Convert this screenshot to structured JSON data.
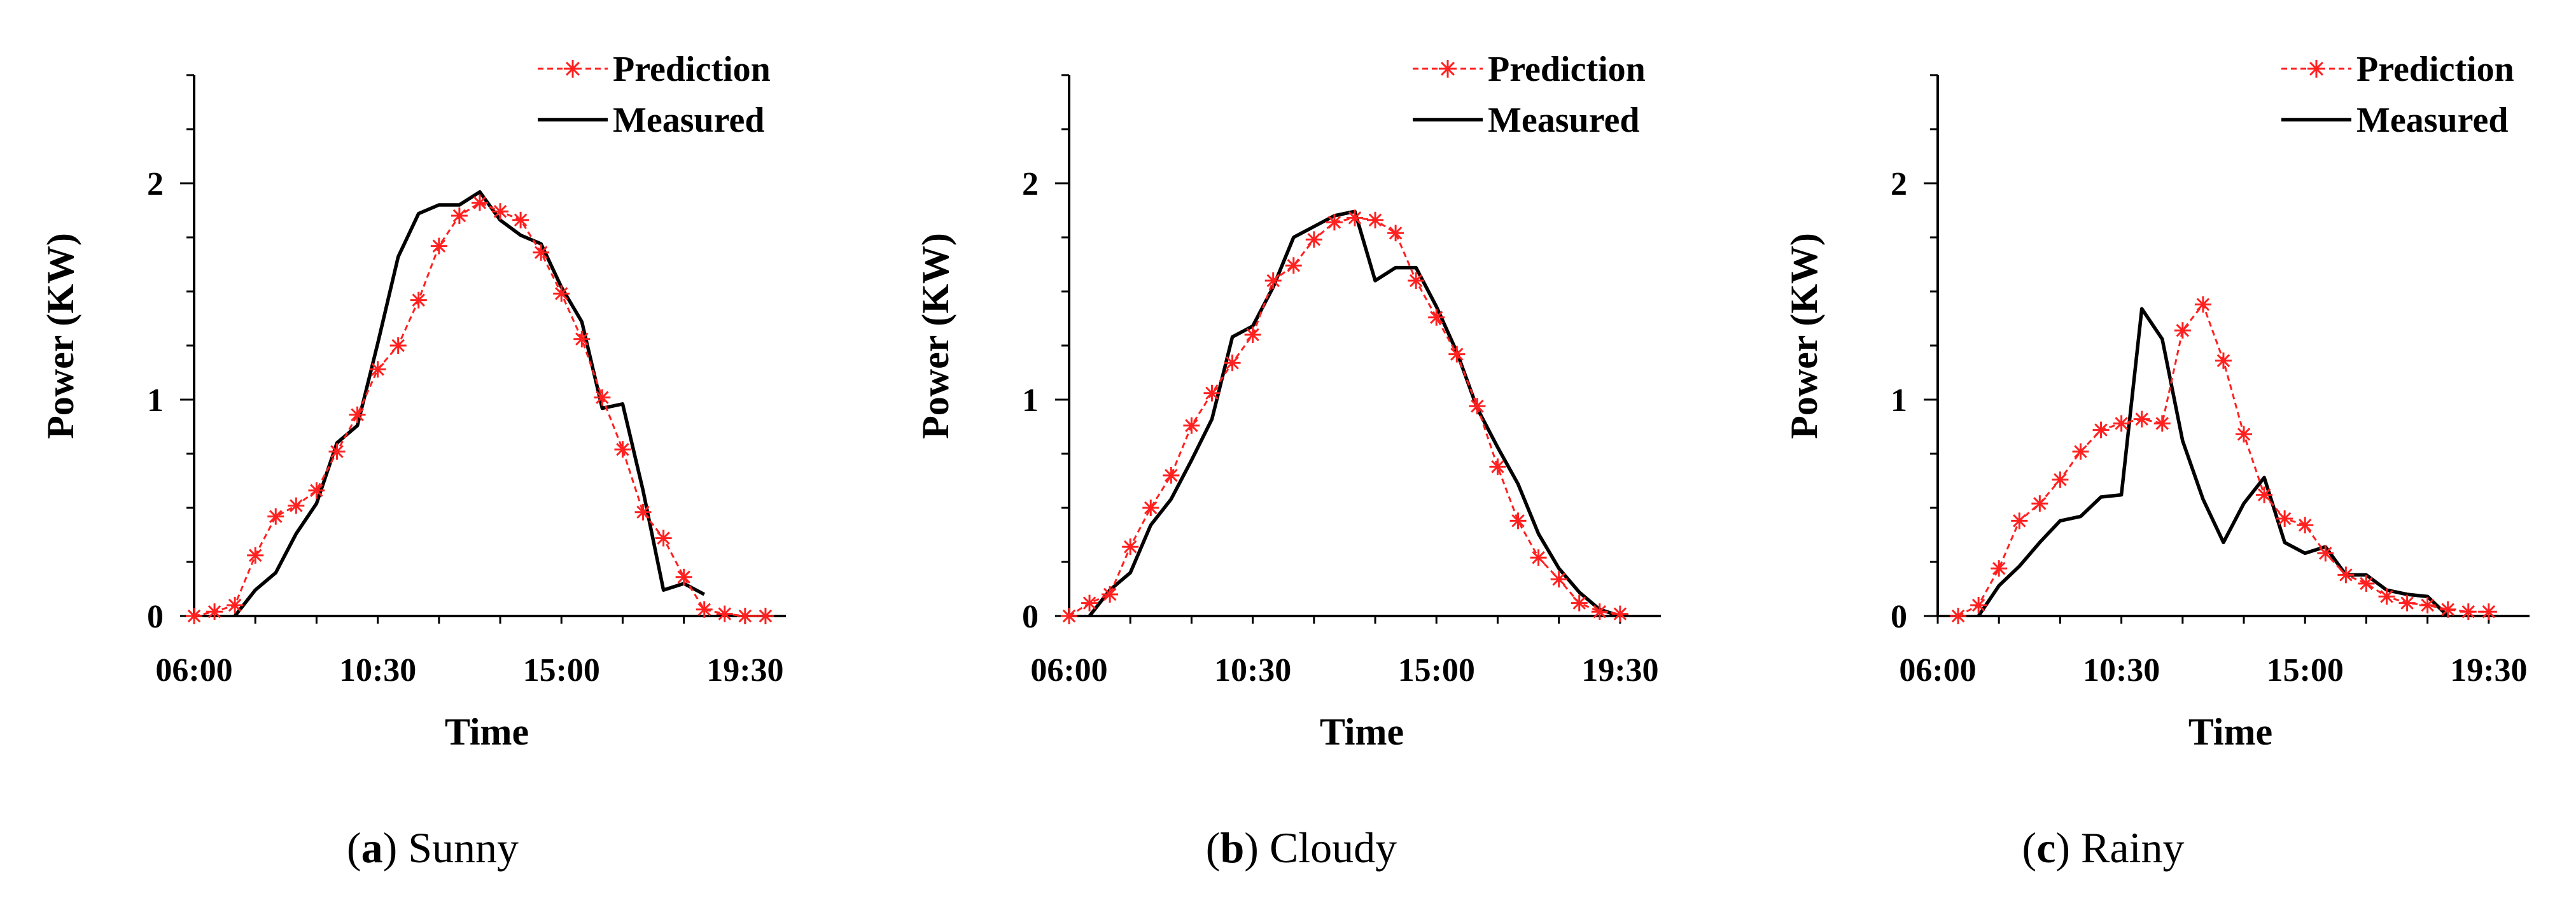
{
  "chart_data": [
    {
      "type": "line",
      "caption_letter": "a",
      "caption_text": "Sunny",
      "xlabel": "Time",
      "ylabel": "Power (KW)",
      "xlim": [
        6,
        20.5
      ],
      "ylim": [
        0,
        2.5
      ],
      "x_ticks": [
        6,
        10.5,
        15,
        19.5
      ],
      "x_tick_labels": [
        "06:00",
        "10:30",
        "15:00",
        "19:30"
      ],
      "y_ticks": [
        0,
        1,
        2
      ],
      "y_tick_labels": [
        "0",
        "1",
        "2"
      ],
      "legend": [
        "Prediction",
        "Measured"
      ],
      "series": [
        {
          "name": "Prediction",
          "x": [
            6,
            6.5,
            7,
            7.5,
            8,
            8.5,
            9,
            9.5,
            10,
            10.5,
            11,
            11.5,
            12,
            12.5,
            13,
            13.5,
            14,
            14.5,
            15,
            15.5,
            16,
            16.5,
            17,
            17.5,
            18,
            18.5,
            19,
            19.5,
            20
          ],
          "values": [
            0.0,
            0.02,
            0.05,
            0.28,
            0.46,
            0.51,
            0.58,
            0.76,
            0.93,
            1.14,
            1.25,
            1.46,
            1.71,
            1.85,
            1.91,
            1.87,
            1.83,
            1.68,
            1.49,
            1.28,
            1.01,
            0.77,
            0.48,
            0.36,
            0.18,
            0.03,
            0.01,
            0.0,
            0.0
          ]
        },
        {
          "name": "Measured",
          "x": [
            7,
            7.5,
            8,
            8.5,
            9,
            9.5,
            10,
            10.5,
            11,
            11.5,
            12,
            12.5,
            13,
            13.5,
            14,
            14.5,
            15,
            15.5,
            16,
            16.5,
            17,
            17.5,
            18,
            18.5
          ],
          "values": [
            0.0,
            0.12,
            0.2,
            0.38,
            0.52,
            0.8,
            0.88,
            1.26,
            1.66,
            1.86,
            1.9,
            1.9,
            1.96,
            1.83,
            1.76,
            1.72,
            1.52,
            1.36,
            0.96,
            0.98,
            0.58,
            0.12,
            0.15,
            0.1
          ]
        }
      ]
    },
    {
      "type": "line",
      "caption_letter": "b",
      "caption_text": "Cloudy",
      "xlabel": "Time",
      "ylabel": "Power (KW)",
      "xlim": [
        6,
        20.5
      ],
      "ylim": [
        0,
        2.5
      ],
      "x_ticks": [
        6,
        10.5,
        15,
        19.5
      ],
      "x_tick_labels": [
        "06:00",
        "10:30",
        "15:00",
        "19:30"
      ],
      "y_ticks": [
        0,
        1,
        2
      ],
      "y_tick_labels": [
        "0",
        "1",
        "2"
      ],
      "legend": [
        "Prediction",
        "Measured"
      ],
      "series": [
        {
          "name": "Prediction",
          "x": [
            6,
            6.5,
            7,
            7.5,
            8,
            8.5,
            9,
            9.5,
            10,
            10.5,
            11,
            11.5,
            12,
            12.5,
            13,
            13.5,
            14,
            14.5,
            15,
            15.5,
            16,
            16.5,
            17,
            17.5,
            18,
            18.5,
            19,
            19.5
          ],
          "values": [
            0.0,
            0.06,
            0.1,
            0.32,
            0.5,
            0.65,
            0.88,
            1.03,
            1.17,
            1.3,
            1.55,
            1.62,
            1.74,
            1.82,
            1.84,
            1.83,
            1.77,
            1.55,
            1.38,
            1.21,
            0.97,
            0.69,
            0.44,
            0.27,
            0.17,
            0.06,
            0.02,
            0.01
          ]
        },
        {
          "name": "Measured",
          "x": [
            6.5,
            7,
            7.5,
            8,
            8.5,
            9,
            9.5,
            10,
            10.5,
            11,
            11.5,
            12,
            12.5,
            13,
            13.5,
            14,
            14.5,
            15,
            15.5,
            16,
            16.5,
            17,
            17.5,
            18,
            18.5,
            19,
            19.5
          ],
          "values": [
            0.0,
            0.12,
            0.2,
            0.42,
            0.54,
            0.72,
            0.91,
            1.29,
            1.34,
            1.52,
            1.75,
            1.8,
            1.85,
            1.87,
            1.55,
            1.61,
            1.61,
            1.43,
            1.22,
            0.96,
            0.78,
            0.61,
            0.38,
            0.22,
            0.11,
            0.03,
            0.0
          ]
        }
      ]
    },
    {
      "type": "line",
      "caption_letter": "c",
      "caption_text": "Rainy",
      "xlabel": "Time",
      "ylabel": "Power (KW)",
      "xlim": [
        6,
        20.5
      ],
      "ylim": [
        0,
        2.5
      ],
      "x_ticks": [
        6,
        10.5,
        15,
        19.5
      ],
      "x_tick_labels": [
        "06:00",
        "10:30",
        "15:00",
        "19:30"
      ],
      "y_ticks": [
        0,
        1,
        2
      ],
      "y_tick_labels": [
        "0",
        "1",
        "2"
      ],
      "legend": [
        "Prediction",
        "Measured"
      ],
      "series": [
        {
          "name": "Prediction",
          "x": [
            6.5,
            7,
            7.5,
            8,
            8.5,
            9,
            9.5,
            10,
            10.5,
            11,
            11.5,
            12,
            12.5,
            13,
            13.5,
            14,
            14.5,
            15,
            15.5,
            16,
            16.5,
            17,
            17.5,
            18,
            18.5,
            19,
            19.5
          ],
          "values": [
            0.0,
            0.05,
            0.22,
            0.44,
            0.52,
            0.63,
            0.76,
            0.86,
            0.89,
            0.91,
            0.89,
            1.32,
            1.44,
            1.18,
            0.84,
            0.56,
            0.45,
            0.42,
            0.29,
            0.19,
            0.15,
            0.09,
            0.06,
            0.05,
            0.03,
            0.02,
            0.02
          ]
        },
        {
          "name": "Measured",
          "x": [
            7,
            7.5,
            8,
            8.5,
            9,
            9.5,
            10,
            10.5,
            11,
            11.5,
            12,
            12.5,
            13,
            13.5,
            14,
            14.5,
            15,
            15.5,
            16,
            16.5,
            17,
            17.5,
            18,
            18.5
          ],
          "values": [
            0.0,
            0.14,
            0.23,
            0.34,
            0.44,
            0.46,
            0.55,
            0.56,
            1.42,
            1.28,
            0.81,
            0.54,
            0.34,
            0.52,
            0.64,
            0.34,
            0.29,
            0.32,
            0.19,
            0.19,
            0.12,
            0.1,
            0.09,
            0.0
          ]
        }
      ]
    }
  ]
}
